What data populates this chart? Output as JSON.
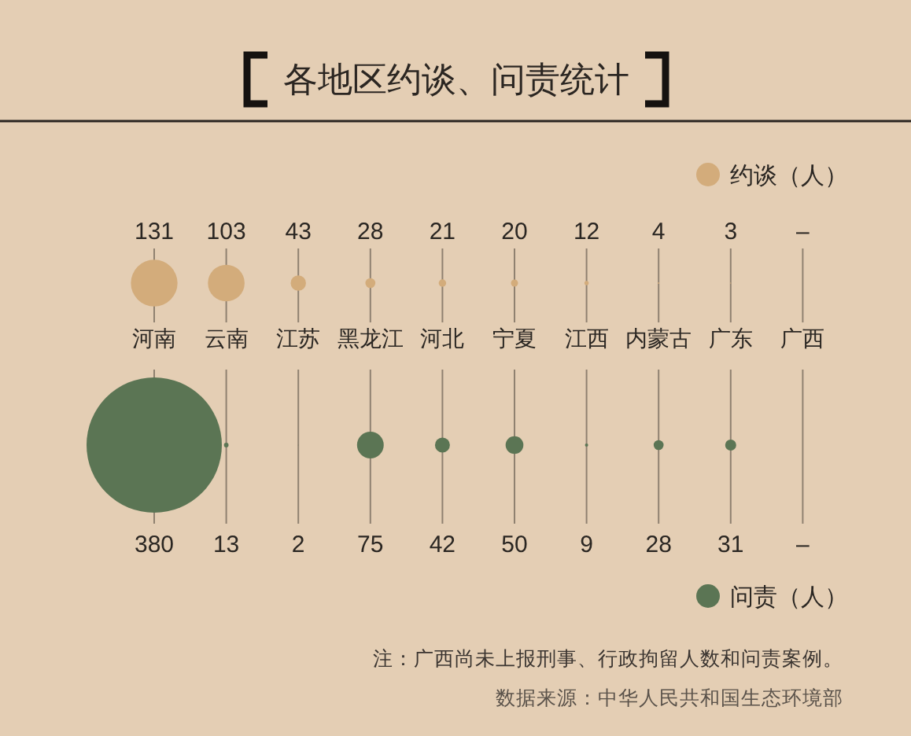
{
  "chart_data": {
    "type": "other",
    "title": "各地区约谈、问责统计",
    "categories": [
      "河南",
      "云南",
      "江苏",
      "黑龙江",
      "河北",
      "宁夏",
      "江西",
      "内蒙古",
      "广东",
      "广西"
    ],
    "series": [
      {
        "name": "约谈（人）",
        "color": "#d3ac7b",
        "values": [
          131,
          103,
          43,
          28,
          21,
          20,
          12,
          4,
          3,
          null
        ],
        "value_labels": [
          "131",
          "103",
          "43",
          "28",
          "21",
          "20",
          "12",
          "4",
          "3",
          "–"
        ]
      },
      {
        "name": "问责（人）",
        "color": "#5b7554",
        "values": [
          380,
          13,
          2,
          75,
          42,
          50,
          9,
          28,
          31,
          null
        ],
        "value_labels": [
          "380",
          "13",
          "2",
          "75",
          "42",
          "50",
          "9",
          "28",
          "31",
          "–"
        ]
      }
    ],
    "legend": "right",
    "annotations": [
      "注：广西尚未上报刑事、行政拘留人数和问责案例。",
      "数据来源：中华人民共和国生态环境部"
    ]
  }
}
